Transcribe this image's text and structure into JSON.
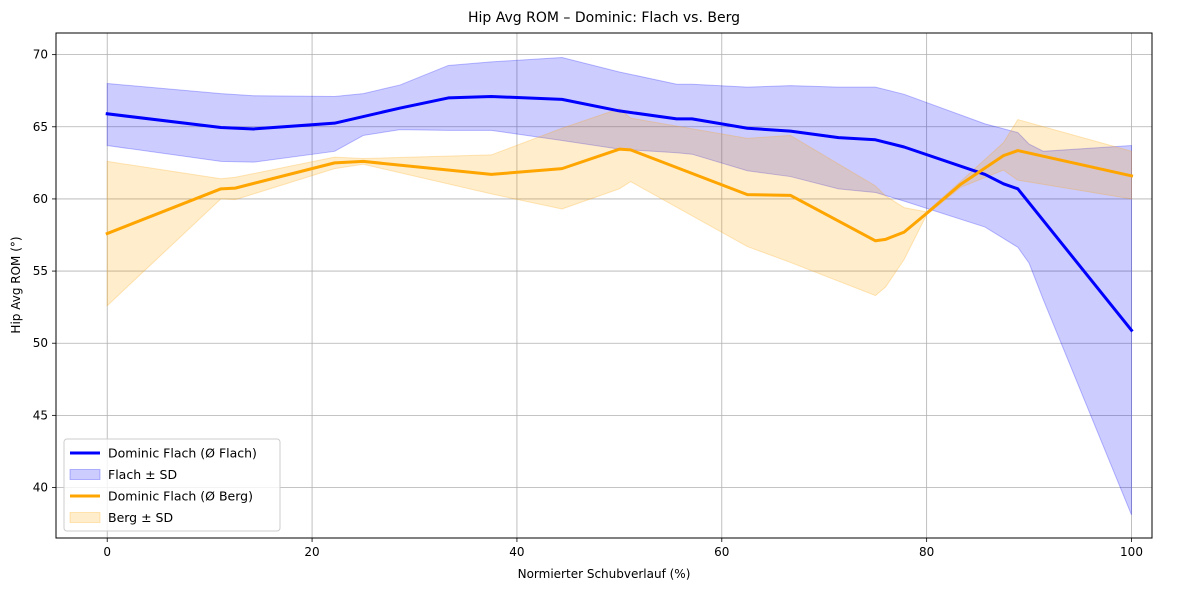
{
  "chart_data": {
    "type": "line",
    "title": "Hip Avg ROM – Dominic: Flach vs. Berg",
    "xlabel": "Normierter Schubverlauf (%)",
    "ylabel": "Hip Avg ROM (°)",
    "xlim": [
      -5,
      102
    ],
    "ylim": [
      36.5,
      71.5
    ],
    "xticks": [
      0,
      20,
      40,
      60,
      80,
      100
    ],
    "yticks": [
      40,
      45,
      50,
      55,
      60,
      65,
      70
    ],
    "grid": true,
    "legend_position": "lower-left",
    "series": [
      {
        "name": "Dominic Flach (Ø Flach)",
        "color": "#0000ff",
        "x": [
          0,
          11.1,
          14.3,
          22.2,
          28.6,
          33.3,
          37.5,
          44.4,
          50,
          55.6,
          57.1,
          62.5,
          66.7,
          71.4,
          75,
          77.8,
          85.7,
          87.5,
          88.9,
          100
        ],
        "y": [
          65.9,
          64.95,
          64.85,
          65.25,
          66.3,
          67.0,
          67.1,
          66.9,
          66.1,
          65.55,
          65.55,
          64.9,
          64.7,
          64.25,
          64.1,
          63.6,
          61.7,
          61.05,
          60.7,
          50.9
        ]
      },
      {
        "name": "Dominic Flach (Ø Berg)",
        "color": "#ffa500",
        "x": [
          0,
          11.1,
          12.5,
          22.2,
          25,
          37.5,
          44.4,
          50,
          51.1,
          62.5,
          66.7,
          75,
          76,
          77.8,
          80,
          83.3,
          87.5,
          88.9,
          100
        ],
        "y": [
          57.6,
          60.7,
          60.75,
          62.5,
          62.6,
          61.7,
          62.1,
          63.45,
          63.4,
          60.3,
          60.25,
          57.1,
          57.2,
          57.7,
          59.0,
          61.0,
          63.0,
          63.35,
          61.6
        ]
      }
    ],
    "bands": [
      {
        "name": "Flach ± SD",
        "color": "#0000ff",
        "x": [
          0,
          11.1,
          14.3,
          22.2,
          25,
          28.6,
          33.3,
          37.5,
          44.4,
          50,
          55.6,
          57.1,
          62.5,
          66.7,
          71.4,
          75,
          77.8,
          85.7,
          88.9,
          90,
          91.4,
          100
        ],
        "upper": [
          68.0,
          67.3,
          67.15,
          67.1,
          67.3,
          67.9,
          69.25,
          69.5,
          69.8,
          68.8,
          67.95,
          67.95,
          67.75,
          67.85,
          67.75,
          67.75,
          67.25,
          65.2,
          64.6,
          63.8,
          63.3,
          63.7
        ],
        "lower": [
          63.7,
          62.6,
          62.55,
          63.3,
          64.4,
          64.8,
          64.75,
          64.75,
          64.05,
          63.45,
          63.2,
          63.1,
          61.95,
          61.55,
          60.7,
          60.45,
          59.85,
          58.05,
          56.65,
          55.55,
          53.0,
          38.1
        ]
      },
      {
        "name": "Berg ± SD",
        "color": "#ffa500",
        "x": [
          0,
          11.1,
          12.5,
          22.2,
          25,
          37.5,
          44.4,
          50,
          51.1,
          62.5,
          66.7,
          75,
          76,
          77.8,
          80,
          83.3,
          87.5,
          88.9,
          100
        ],
        "upper": [
          62.6,
          61.4,
          61.5,
          62.9,
          62.8,
          63.05,
          64.9,
          66.25,
          65.6,
          64.2,
          64.4,
          60.9,
          60.2,
          59.4,
          59.1,
          61.2,
          63.9,
          65.5,
          63.3
        ],
        "lower": [
          52.6,
          60.0,
          59.95,
          62.1,
          62.4,
          60.35,
          59.3,
          60.7,
          61.2,
          56.7,
          55.6,
          53.3,
          53.9,
          55.8,
          58.9,
          60.8,
          62.0,
          61.3,
          60.0
        ]
      }
    ],
    "legend": [
      {
        "label": "Dominic Flach (Ø Flach)",
        "kind": "line",
        "color": "#0000ff"
      },
      {
        "label": "Flach ± SD",
        "kind": "band",
        "color": "#0000ff"
      },
      {
        "label": "Dominic Flach (Ø Berg)",
        "kind": "line",
        "color": "#ffa500"
      },
      {
        "label": "Berg ± SD",
        "kind": "band",
        "color": "#ffa500"
      }
    ]
  }
}
